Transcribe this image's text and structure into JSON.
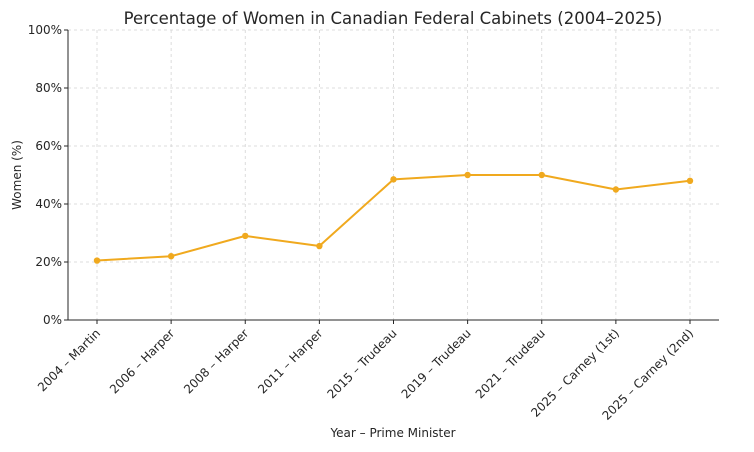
{
  "chart_data": {
    "type": "line",
    "title": "Percentage of Women in Canadian Federal Cabinets (2004–2025)",
    "xlabel": "Year – Prime Minister",
    "ylabel": "Women (%)",
    "categories": [
      "2004 – Martin",
      "2006 – Harper",
      "2008 – Harper",
      "2011 – Harper",
      "2015 – Trudeau",
      "2019 – Trudeau",
      "2021 – Trudeau",
      "2025 – Carney (1st)",
      "2025 – Carney (2nd)"
    ],
    "series": [
      {
        "values": [
          20.5,
          22,
          29,
          25.5,
          48.5,
          50,
          50,
          45,
          48
        ],
        "color": "#f0a91e"
      }
    ],
    "ylim": [
      0,
      100
    ],
    "yticks": [
      0,
      20,
      40,
      60,
      80,
      100
    ],
    "ytick_labels": [
      "0%",
      "20%",
      "40%",
      "60%",
      "80%",
      "100%"
    ],
    "grid": true
  }
}
